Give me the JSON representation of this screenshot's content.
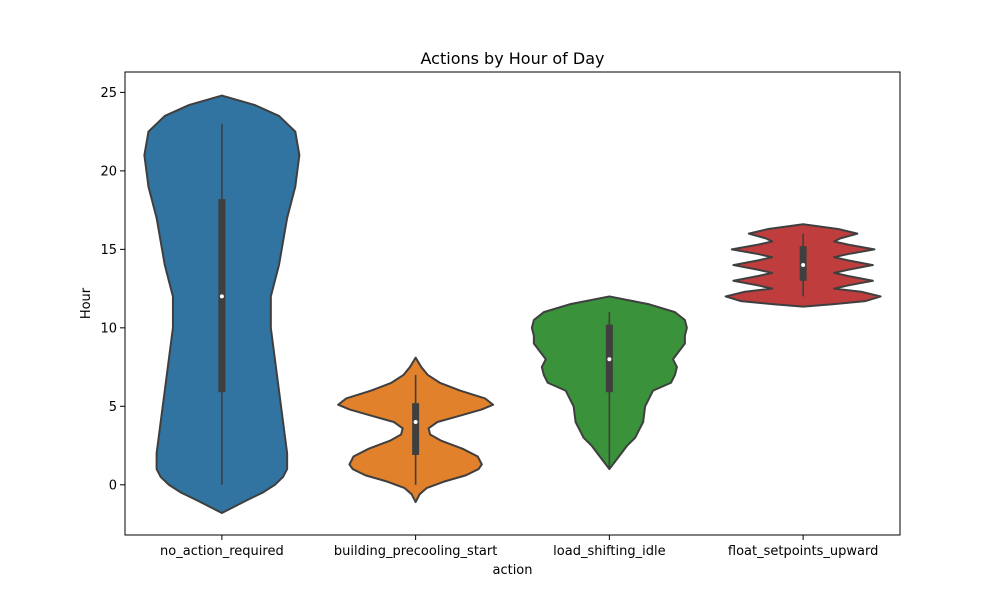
{
  "chart_data": {
    "type": "violin",
    "title": "Actions by Hour of Day",
    "xlabel": "action",
    "ylabel": "Hour",
    "ylim": [
      -3.2,
      26.3
    ],
    "yticks": [
      0,
      5,
      10,
      15,
      20,
      25
    ],
    "grid": false,
    "legend": "none",
    "categories": [
      "no_action_required",
      "building_precooling_start",
      "load_shifting_idle",
      "float_setpoints_upward"
    ],
    "violins": [
      {
        "category": "no_action_required",
        "color": "#3274a1",
        "box": {
          "q1": 5.9,
          "median": 12.0,
          "q3": 18.2,
          "whisker_low": 0.0,
          "whisker_high": 23.0
        },
        "density": [
          [
            -1.8,
            0.0
          ],
          [
            -1.0,
            0.03
          ],
          [
            -0.5,
            0.05
          ],
          [
            0.0,
            0.065
          ],
          [
            0.5,
            0.075
          ],
          [
            1.0,
            0.08
          ],
          [
            2.0,
            0.08
          ],
          [
            4.0,
            0.075
          ],
          [
            6.0,
            0.07
          ],
          [
            8.0,
            0.065
          ],
          [
            10.0,
            0.06
          ],
          [
            12.0,
            0.06
          ],
          [
            13.0,
            0.065
          ],
          [
            14.0,
            0.07
          ],
          [
            15.5,
            0.075
          ],
          [
            17.0,
            0.08
          ],
          [
            19.0,
            0.09
          ],
          [
            21.0,
            0.095
          ],
          [
            22.5,
            0.09
          ],
          [
            23.5,
            0.07
          ],
          [
            24.2,
            0.04
          ],
          [
            24.8,
            0.0
          ]
        ]
      },
      {
        "category": "building_precooling_start",
        "color": "#e1812c",
        "box": {
          "q1": 1.9,
          "median": 4.0,
          "q3": 5.2,
          "whisker_low": 0.0,
          "whisker_high": 7.0
        },
        "density": [
          [
            -1.1,
            0.0
          ],
          [
            -0.6,
            0.05
          ],
          [
            -0.2,
            0.14
          ],
          [
            0.2,
            0.35
          ],
          [
            0.6,
            0.62
          ],
          [
            1.0,
            0.78
          ],
          [
            1.3,
            0.82
          ],
          [
            1.8,
            0.77
          ],
          [
            2.3,
            0.58
          ],
          [
            2.8,
            0.32
          ],
          [
            3.2,
            0.18
          ],
          [
            3.6,
            0.16
          ],
          [
            4.0,
            0.27
          ],
          [
            4.4,
            0.55
          ],
          [
            4.8,
            0.82
          ],
          [
            5.1,
            0.96
          ],
          [
            5.5,
            0.86
          ],
          [
            6.0,
            0.55
          ],
          [
            6.5,
            0.3
          ],
          [
            7.0,
            0.15
          ],
          [
            7.5,
            0.07
          ],
          [
            8.1,
            0.0
          ]
        ]
      },
      {
        "category": "load_shifting_idle",
        "color": "#3a923a",
        "box": {
          "q1": 5.9,
          "median": 8.0,
          "q3": 10.2,
          "whisker_low": 1.0,
          "whisker_high": 11.0
        },
        "density": [
          [
            1.0,
            0.0
          ],
          [
            1.5,
            0.03
          ],
          [
            2.0,
            0.06
          ],
          [
            2.5,
            0.09
          ],
          [
            3.0,
            0.13
          ],
          [
            3.5,
            0.15
          ],
          [
            4.0,
            0.17
          ],
          [
            5.0,
            0.18
          ],
          [
            6.0,
            0.22
          ],
          [
            6.5,
            0.31
          ],
          [
            7.0,
            0.33
          ],
          [
            7.5,
            0.34
          ],
          [
            8.0,
            0.32
          ],
          [
            8.5,
            0.35
          ],
          [
            9.0,
            0.38
          ],
          [
            9.5,
            0.38
          ],
          [
            10.0,
            0.39
          ],
          [
            10.5,
            0.38
          ],
          [
            11.0,
            0.33
          ],
          [
            11.5,
            0.2
          ],
          [
            12.0,
            0.0
          ]
        ]
      },
      {
        "category": "float_setpoints_upward",
        "color": "#c03d3e",
        "box": {
          "q1": 13.0,
          "median": 14.0,
          "q3": 15.2,
          "whisker_low": 12.0,
          "whisker_high": 16.0
        },
        "density": [
          [
            11.35,
            0.0
          ],
          [
            11.5,
            0.38
          ],
          [
            11.7,
            0.8
          ],
          [
            12.0,
            1.0
          ],
          [
            12.3,
            0.75
          ],
          [
            12.5,
            0.4
          ],
          [
            12.7,
            0.58
          ],
          [
            13.0,
            0.9
          ],
          [
            13.3,
            0.58
          ],
          [
            13.5,
            0.4
          ],
          [
            13.7,
            0.58
          ],
          [
            14.0,
            0.9
          ],
          [
            14.3,
            0.58
          ],
          [
            14.5,
            0.4
          ],
          [
            14.7,
            0.58
          ],
          [
            15.0,
            0.92
          ],
          [
            15.3,
            0.58
          ],
          [
            15.5,
            0.4
          ],
          [
            15.7,
            0.48
          ],
          [
            16.0,
            0.7
          ],
          [
            16.3,
            0.45
          ],
          [
            16.6,
            0.0
          ]
        ]
      }
    ]
  }
}
